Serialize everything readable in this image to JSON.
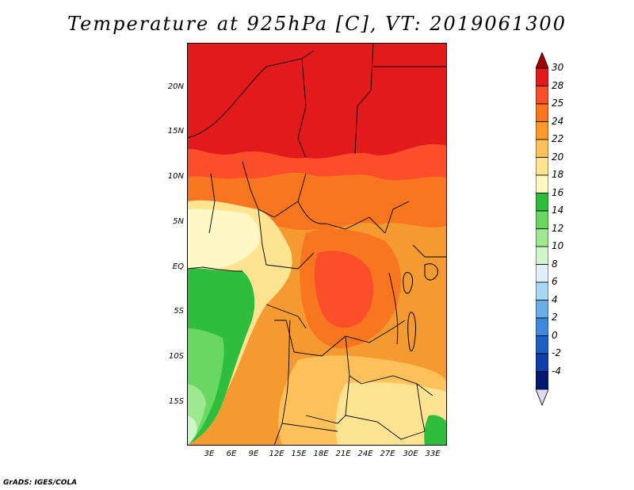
{
  "title": "Temperature at 925hPa [C], VT: 2019061300",
  "footer": "GrADS: IGES/COLA",
  "map": {
    "lon_ticks": [
      "3E",
      "6E",
      "9E",
      "12E",
      "15E",
      "18E",
      "21E",
      "24E",
      "27E",
      "30E",
      "33E"
    ],
    "lat_ticks": [
      "20N",
      "15N",
      "10N",
      "5N",
      "EQ",
      "5S",
      "10S",
      "15S"
    ]
  },
  "colorbar": {
    "labels": [
      "30",
      "28",
      "25",
      "24",
      "22",
      "20",
      "18",
      "16",
      "14",
      "12",
      "10",
      "8",
      "6",
      "4",
      "2",
      "0",
      "-2",
      "-4"
    ],
    "colors": [
      "#a50000",
      "#e31a1c",
      "#fc4e2a",
      "#f7761f",
      "#fd9a2a",
      "#fdc15a",
      "#fee391",
      "#fff7c4",
      "#2fbd3e",
      "#68d860",
      "#9ee88f",
      "#cff5c8",
      "#dff0fb",
      "#a9d8f5",
      "#6aaee9",
      "#3e88dd",
      "#1d5fc2",
      "#0e3fa8",
      "#001a70",
      "#ddd9f2"
    ]
  }
}
